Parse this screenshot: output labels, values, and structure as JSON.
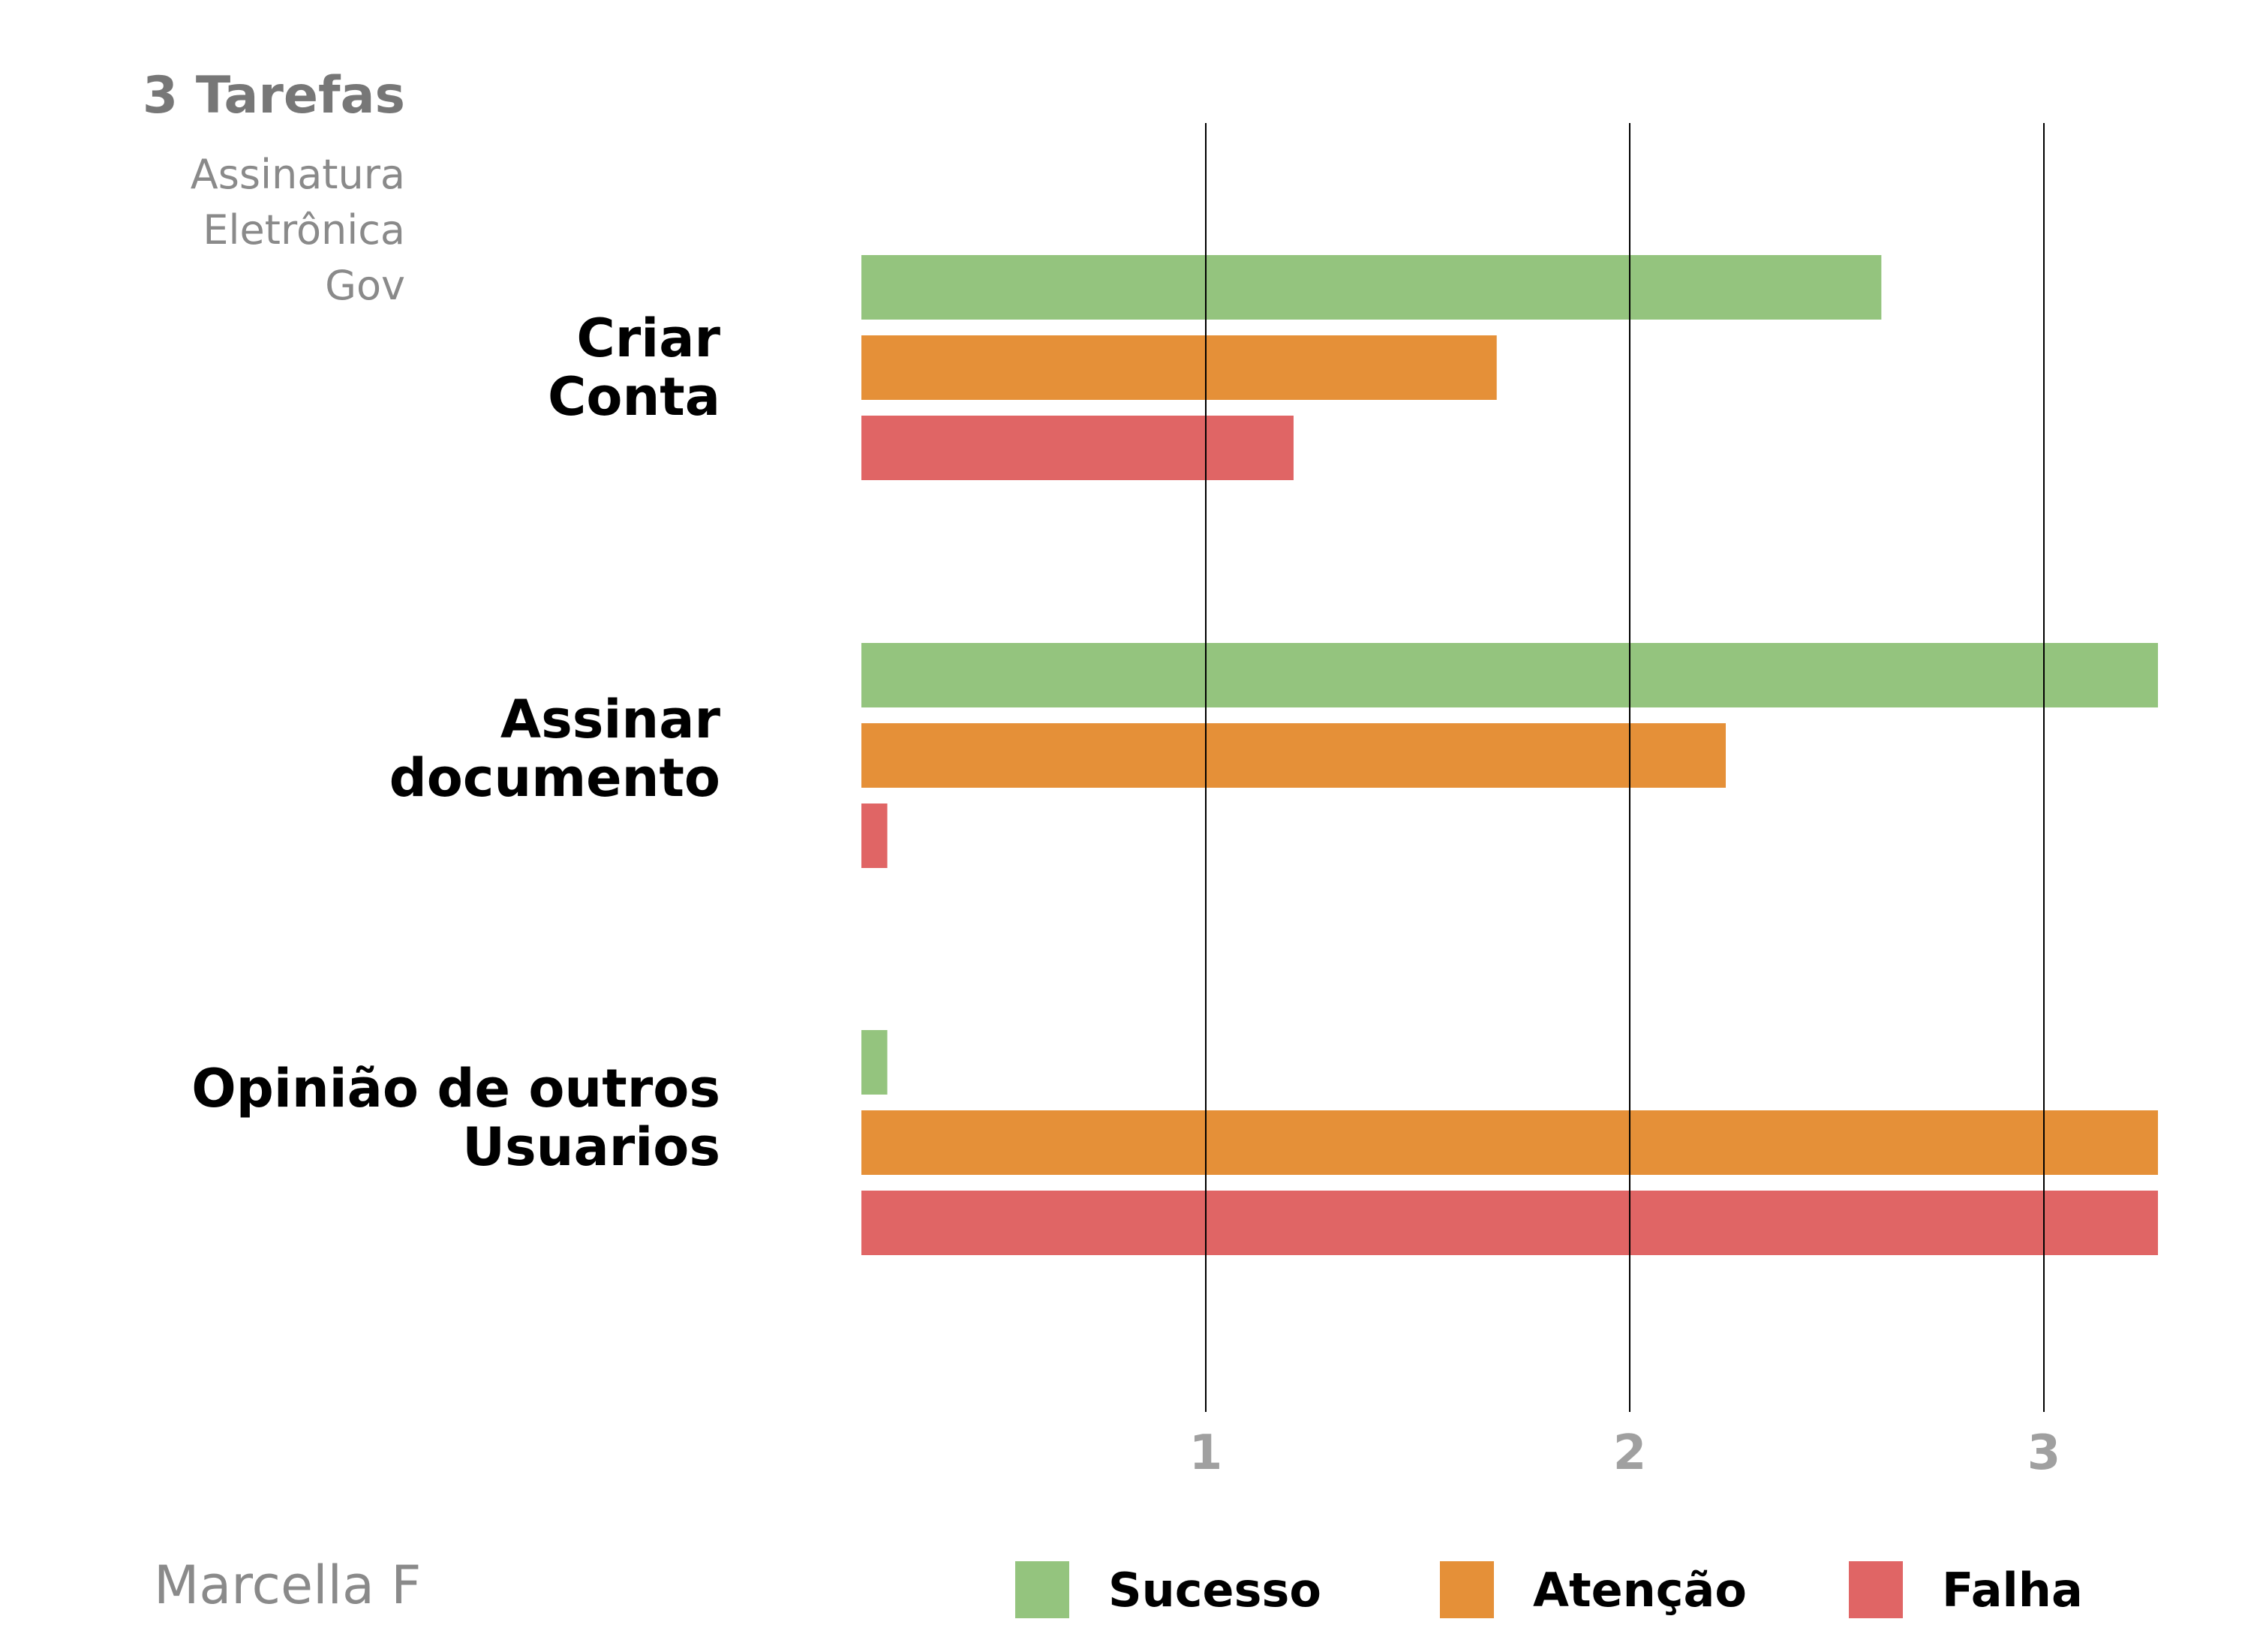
{
  "header": {
    "title": "3 Tarefas",
    "subtitle": "Assinatura\nEletrônica\nGov"
  },
  "footer": {
    "author": "Marcella F"
  },
  "chart_data": {
    "type": "bar",
    "orientation": "horizontal",
    "categories": [
      "Criar\nConta",
      "Assinar\ndocumento",
      "Opinião de outros\nUsuarios"
    ],
    "series": [
      {
        "name": "Sucesso",
        "color": "#94c47e",
        "values": [
          2.36,
          3.0,
          0.06
        ]
      },
      {
        "name": "Atenção",
        "color": "#e59038",
        "values": [
          1.47,
          2.0,
          3.0
        ]
      },
      {
        "name": "Falha",
        "color": "#e06565",
        "values": [
          1.0,
          0.06,
          3.0
        ]
      }
    ],
    "x_ticks": [
      "1",
      "2",
      "3"
    ],
    "grid": "vertical lines at ticks",
    "legend_position": "bottom",
    "xlabel": "",
    "ylabel": ""
  }
}
